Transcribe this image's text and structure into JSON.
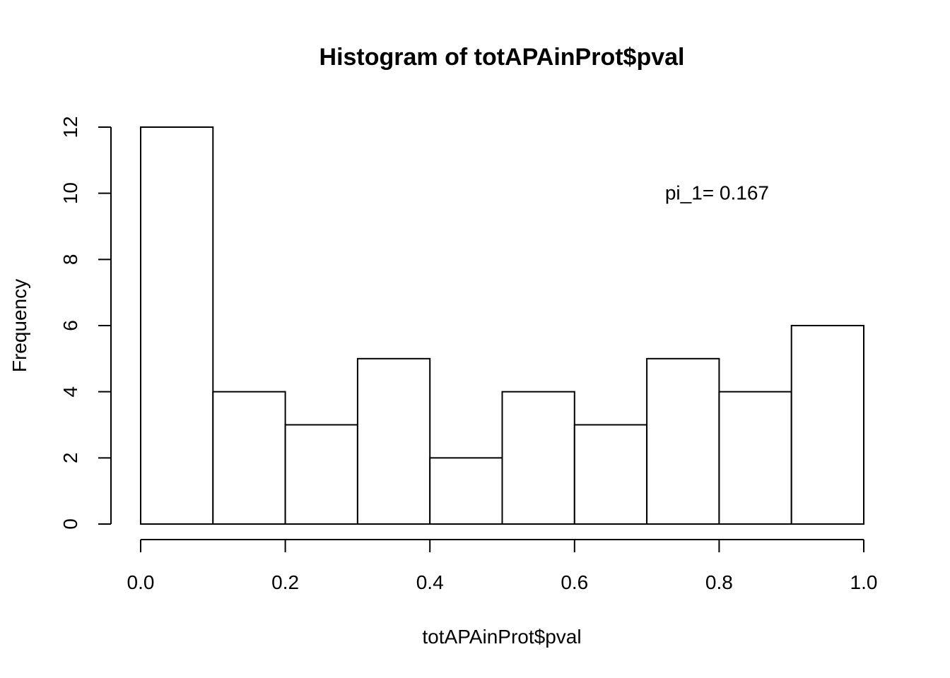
{
  "chart_data": {
    "type": "bar",
    "title": "Histogram of totAPAinProt$pval",
    "xlabel": "totAPAinProt$pval",
    "ylabel": "Frequency",
    "bins": [
      {
        "start": 0.0,
        "end": 0.1,
        "count": 12
      },
      {
        "start": 0.1,
        "end": 0.2,
        "count": 4
      },
      {
        "start": 0.2,
        "end": 0.3,
        "count": 3
      },
      {
        "start": 0.3,
        "end": 0.4,
        "count": 5
      },
      {
        "start": 0.4,
        "end": 0.5,
        "count": 2
      },
      {
        "start": 0.5,
        "end": 0.6,
        "count": 4
      },
      {
        "start": 0.6,
        "end": 0.7,
        "count": 3
      },
      {
        "start": 0.7,
        "end": 0.8,
        "count": 5
      },
      {
        "start": 0.8,
        "end": 0.9,
        "count": 4
      },
      {
        "start": 0.9,
        "end": 1.0,
        "count": 6
      }
    ],
    "xlim": [
      0.0,
      1.0
    ],
    "ylim": [
      0,
      12
    ],
    "x_ticks": [
      {
        "value": 0.0,
        "label": "0.0"
      },
      {
        "value": 0.2,
        "label": "0.2"
      },
      {
        "value": 0.4,
        "label": "0.4"
      },
      {
        "value": 0.6,
        "label": "0.6"
      },
      {
        "value": 0.8,
        "label": "0.8"
      },
      {
        "value": 1.0,
        "label": "1.0"
      }
    ],
    "y_ticks": [
      {
        "value": 0,
        "label": "0"
      },
      {
        "value": 2,
        "label": "2"
      },
      {
        "value": 4,
        "label": "4"
      },
      {
        "value": 6,
        "label": "6"
      },
      {
        "value": 8,
        "label": "8"
      },
      {
        "value": 10,
        "label": "10"
      },
      {
        "value": 12,
        "label": "12"
      }
    ],
    "annotations": [
      {
        "text": "pi_1= 0.167",
        "x": 0.8,
        "y": 10
      }
    ],
    "grid": false,
    "legend": "none",
    "bar_fill": "#ffffff",
    "bar_stroke": "#000000"
  }
}
